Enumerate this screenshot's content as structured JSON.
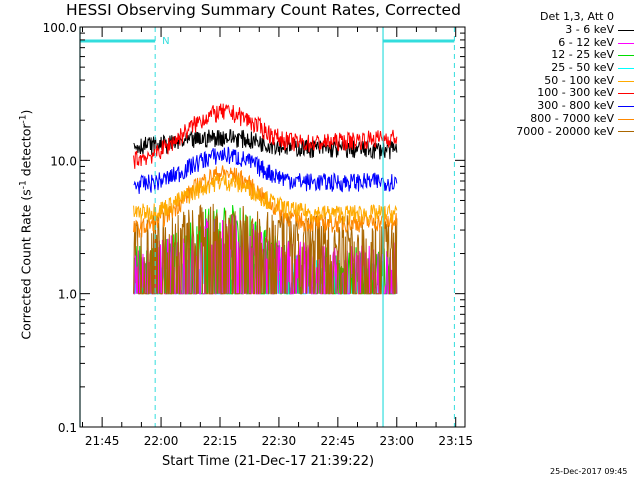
{
  "title": "HESSI Observing Summary Count Rates, Corrected",
  "xlabel": "Start Time (21-Dec-17 21:39:22)",
  "ylabel": {
    "main": "Corrected Count Rate (s",
    "sup": "-1",
    "tail": " detector",
    "sup2": "-1",
    "end": ")"
  },
  "timestamp": "25-Dec-2017 09:45",
  "legend": {
    "header": "Det 1,3, Att 0",
    "items": [
      {
        "label": "3 - 6 keV",
        "color": "#000000"
      },
      {
        "label": "6 - 12 keV",
        "color": "#ff00ff"
      },
      {
        "label": "12 - 25 keV",
        "color": "#00dd00"
      },
      {
        "label": "25 - 50 keV",
        "color": "#00ffff"
      },
      {
        "label": "50 - 100 keV",
        "color": "#ffaa00"
      },
      {
        "label": "100 - 300 keV",
        "color": "#ff0000"
      },
      {
        "label": "300 - 800 keV",
        "color": "#0000ff"
      },
      {
        "label": "800 - 7000 keV",
        "color": "#ff8800"
      },
      {
        "label": "7000 - 20000 keV",
        "color": "#aa6600"
      }
    ]
  },
  "marker_label": "N",
  "chart_data": {
    "type": "line",
    "yscale": "log",
    "ylim": [
      0.1,
      100.0
    ],
    "xlim_minutes_after_2139": [
      0,
      98
    ],
    "yticks": [
      "0.1",
      "1.0",
      "10.0",
      "100.0"
    ],
    "xticks": [
      "21:45",
      "22:00",
      "22:15",
      "22:30",
      "22:45",
      "23:00",
      "23:15"
    ],
    "vertical_markers_time": [
      "21:39:22",
      "21:58:30",
      "22:56:30",
      "23:14:40"
    ],
    "night_bars": [
      [
        "21:39:22",
        "21:58:30"
      ],
      "22:56:30 to 23:14:40"
    ],
    "series": [
      {
        "name": "3 - 6 keV",
        "color": "#000000",
        "time_span": [
          "21:53",
          "23:00"
        ],
        "level_start": 13,
        "level_peak": 15,
        "level_end": 12
      },
      {
        "name": "6 - 12 keV",
        "color": "#ff00ff",
        "time_span": [
          "21:53",
          "23:00"
        ],
        "level_start": 1.5,
        "level_peak": 2.5,
        "level_end": 1.5
      },
      {
        "name": "12 - 25 keV",
        "color": "#00dd00",
        "time_span": [
          "21:53",
          "23:00"
        ],
        "level_start": 1.4,
        "level_peak": 3.0,
        "level_end": 1.4
      },
      {
        "name": "25 - 50 keV",
        "color": "#00ffff",
        "time_span": [
          "21:53",
          "23:00"
        ],
        "level_start": 1.2,
        "level_peak": 1.5,
        "level_end": 1.2
      },
      {
        "name": "50 - 100 keV",
        "color": "#ffaa00",
        "time_span": [
          "21:53",
          "23:00"
        ],
        "level_start": 4,
        "level_peak": 7,
        "level_end": 4
      },
      {
        "name": "100 - 300 keV",
        "color": "#ff0000",
        "time_span": [
          "21:53",
          "23:00"
        ],
        "level_start": 10,
        "level_peak": 23,
        "level_end": 15
      },
      {
        "name": "300 - 800 keV",
        "color": "#0000ff",
        "time_span": [
          "21:53",
          "23:00"
        ],
        "level_start": 6.5,
        "level_peak": 11,
        "level_end": 7
      },
      {
        "name": "800 - 7000 keV",
        "color": "#ff8800",
        "time_span": [
          "21:53",
          "23:00"
        ],
        "level_start": 3,
        "level_peak": 8,
        "level_end": 3.5
      },
      {
        "name": "7000 - 20000 keV",
        "color": "#aa6600",
        "time_span": [
          "21:53",
          "23:00"
        ],
        "level_start": 2.5,
        "level_peak": 3,
        "level_end": 2.5
      }
    ]
  }
}
